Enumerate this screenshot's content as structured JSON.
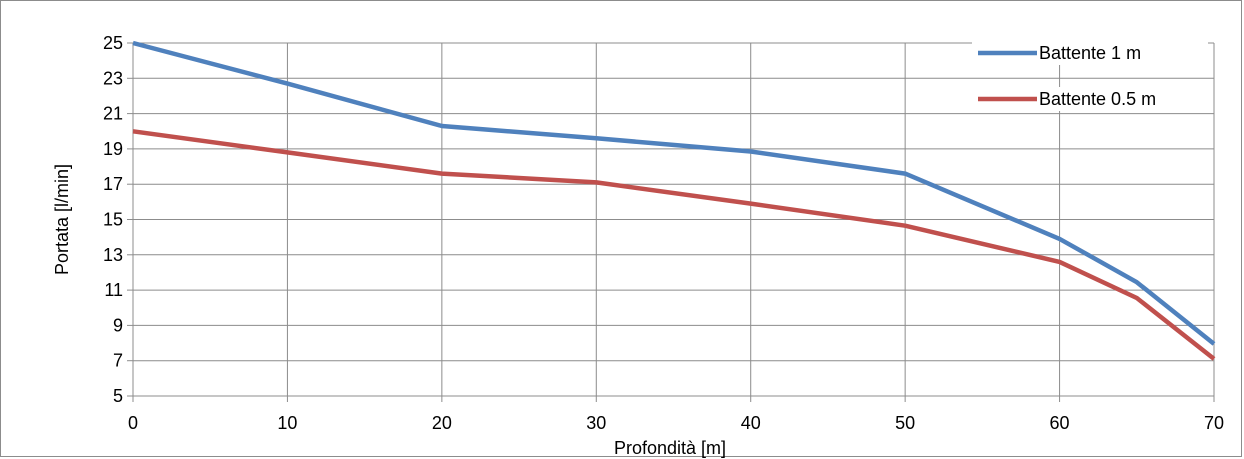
{
  "chart_data": {
    "type": "line",
    "title": "",
    "xlabel": "Profondità [m]",
    "ylabel": "Portata [l/min]",
    "xlim": [
      0,
      70
    ],
    "ylim": [
      5,
      25
    ],
    "x_ticks": [
      "0",
      "10",
      "20",
      "30",
      "40",
      "50",
      "60",
      "70"
    ],
    "y_ticks": [
      "5",
      "7",
      "9",
      "11",
      "13",
      "15",
      "17",
      "19",
      "21",
      "23",
      "25"
    ],
    "grid": true,
    "legend_position": "top-right",
    "series": [
      {
        "name": "Battente 1 m",
        "color": "#4f81bd",
        "x": [
          0,
          10,
          20,
          30,
          40,
          50,
          60,
          65,
          70
        ],
        "y": [
          25,
          22.7,
          20.3,
          19.6,
          18.85,
          17.6,
          13.9,
          11.45,
          7.95
        ]
      },
      {
        "name": "Battente 0.5 m",
        "color": "#c0504d",
        "x": [
          0,
          10,
          20,
          30,
          40,
          50,
          60,
          65,
          70
        ],
        "y": [
          20,
          18.8,
          17.6,
          17.1,
          15.9,
          14.65,
          12.6,
          10.55,
          7.1
        ]
      }
    ]
  }
}
